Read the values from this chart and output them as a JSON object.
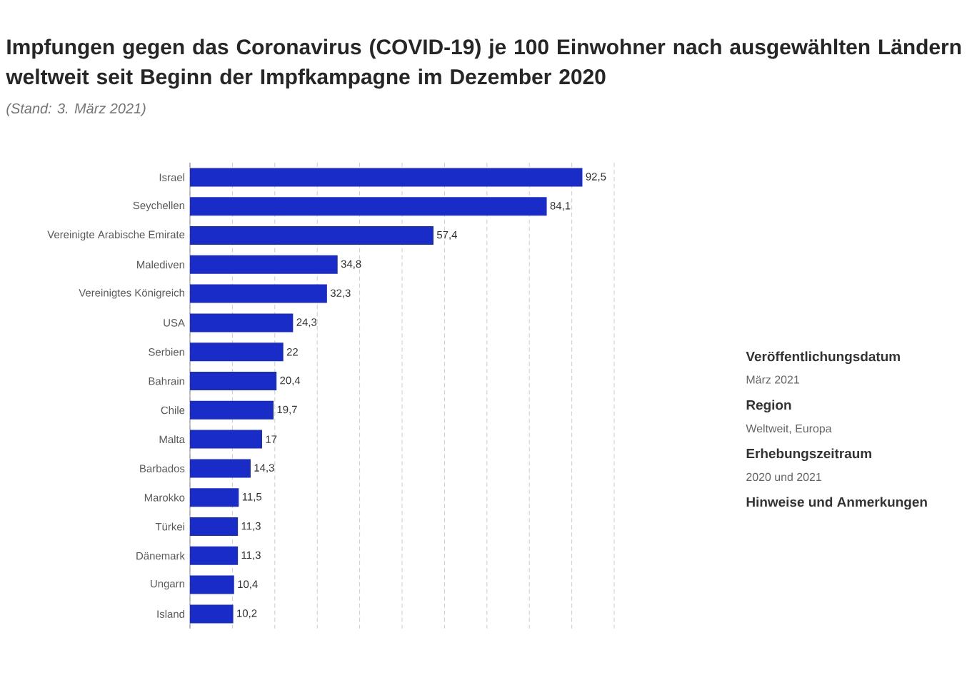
{
  "chart_data": {
    "type": "bar",
    "orientation": "horizontal",
    "title": "Impfungen gegen das Coronavirus (COVID-19) je 100 Einwohner nach ausgewählten Ländern weltweit seit Beginn der Impfkampagne im Dezember 2020",
    "subtitle": "(Stand: 3. März 2021)",
    "categories": [
      "Israel",
      "Seychellen",
      "Vereinigte Arabische Emirate",
      "Malediven",
      "Vereinigtes Königreich",
      "USA",
      "Serbien",
      "Bahrain",
      "Chile",
      "Malta",
      "Barbados",
      "Marokko",
      "Türkei",
      "Dänemark",
      "Ungarn",
      "Island"
    ],
    "values": [
      92.5,
      84.1,
      57.4,
      34.8,
      32.3,
      24.3,
      22,
      20.4,
      19.7,
      17,
      14.3,
      11.5,
      11.3,
      11.3,
      10.4,
      10.2
    ],
    "value_labels": [
      "92,5",
      "84,1",
      "57,4",
      "34,8",
      "32,3",
      "24,3",
      "22",
      "20,4",
      "19,7",
      "17",
      "14,3",
      "11,5",
      "11,3",
      "11,3",
      "10,4",
      "10,2"
    ],
    "color": "#1a2cc8",
    "xlim": [
      0,
      100
    ],
    "xticks": [
      {
        "value": 0,
        "label": null
      },
      {
        "value": 10,
        "label": null
      },
      {
        "value": 20,
        "label": null
      },
      {
        "value": 30,
        "label": null
      },
      {
        "value": 40,
        "label": null
      },
      {
        "value": 50,
        "label": null
      },
      {
        "value": 60,
        "label": null
      },
      {
        "value": 70,
        "label": null
      },
      {
        "value": 80,
        "label": null
      },
      {
        "value": 90,
        "label": null
      },
      {
        "value": 100,
        "label": null
      }
    ],
    "grid": "x",
    "tick_labels": "y",
    "annotations": [
      "Veröffentlichungsdatum",
      "März 2021",
      "Region",
      "Weltweit, Europa",
      "Erhebungszeitraum",
      "2020 und 2021",
      "Hinweise und Anmerkungen"
    ]
  }
}
